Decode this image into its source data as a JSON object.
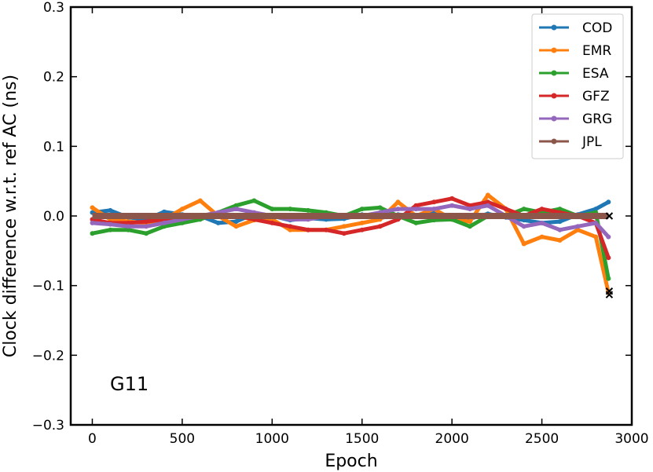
{
  "chart_data": {
    "type": "line",
    "title": "",
    "xlabel": "Epoch",
    "ylabel": "Clock difference w.r.t. ref AC (ns)",
    "xlim": [
      -120,
      3000
    ],
    "ylim": [
      -0.3,
      0.3
    ],
    "xticks": [
      0,
      500,
      1000,
      1500,
      2000,
      2500,
      3000
    ],
    "yticks": [
      -0.3,
      -0.2,
      -0.1,
      0.0,
      0.1,
      0.2,
      0.3
    ],
    "xtick_labels": [
      "0",
      "500",
      "1000",
      "1500",
      "2000",
      "2500",
      "3000"
    ],
    "ytick_labels": [
      "−0.3",
      "−0.2",
      "−0.1",
      "0.0",
      "0.1",
      "0.2",
      "0.3"
    ],
    "grid": false,
    "legend_position": "top-right",
    "annotation": "G11",
    "x": [
      0,
      100,
      200,
      300,
      400,
      500,
      600,
      700,
      800,
      900,
      1000,
      1100,
      1200,
      1300,
      1400,
      1500,
      1600,
      1700,
      1800,
      1900,
      2000,
      2100,
      2200,
      2300,
      2400,
      2500,
      2600,
      2700,
      2800,
      2870
    ],
    "series": [
      {
        "name": "COD",
        "color": "#1f77b4",
        "values": [
          0.005,
          0.008,
          -0.002,
          -0.005,
          0.006,
          0.002,
          0.0,
          -0.01,
          -0.008,
          0.003,
          0.0,
          -0.006,
          -0.003,
          -0.005,
          -0.004,
          0.002,
          -0.003,
          0.002,
          0.0,
          0.004,
          0.0,
          -0.004,
          0.003,
          -0.002,
          -0.006,
          -0.01,
          -0.008,
          0.002,
          0.01,
          0.02
        ]
      },
      {
        "name": "EMR",
        "color": "#ff7f0e",
        "values": [
          0.012,
          -0.005,
          -0.008,
          -0.01,
          -0.005,
          0.01,
          0.022,
          0.0,
          -0.015,
          -0.006,
          -0.005,
          -0.02,
          -0.02,
          -0.02,
          -0.015,
          -0.01,
          -0.005,
          0.02,
          0.0,
          0.01,
          -0.005,
          -0.008,
          0.03,
          0.01,
          -0.04,
          -0.03,
          -0.035,
          -0.02,
          -0.03,
          -0.11
        ]
      },
      {
        "name": "ESA",
        "color": "#2ca02c",
        "values": [
          -0.025,
          -0.02,
          -0.02,
          -0.025,
          -0.015,
          -0.01,
          -0.005,
          0.005,
          0.015,
          0.022,
          0.01,
          0.01,
          0.008,
          0.005,
          0.0,
          0.01,
          0.012,
          0.0,
          -0.01,
          -0.006,
          -0.005,
          -0.015,
          0.0,
          0.0,
          0.01,
          0.005,
          0.01,
          0.0,
          0.005,
          -0.09
        ]
      },
      {
        "name": "GFZ",
        "color": "#d62728",
        "values": [
          -0.005,
          -0.01,
          -0.01,
          -0.008,
          -0.005,
          0.0,
          0.0,
          0.0,
          0.0,
          -0.005,
          -0.01,
          -0.015,
          -0.02,
          -0.02,
          -0.025,
          -0.02,
          -0.015,
          -0.005,
          0.015,
          0.02,
          0.025,
          0.015,
          0.02,
          0.01,
          0.0,
          0.01,
          0.005,
          0.0,
          -0.01,
          -0.06
        ]
      },
      {
        "name": "GRG",
        "color": "#9467bd",
        "values": [
          -0.01,
          -0.012,
          -0.015,
          -0.015,
          -0.01,
          -0.005,
          0.0,
          0.005,
          0.01,
          0.005,
          0.0,
          -0.005,
          -0.005,
          0.0,
          0.0,
          0.0,
          0.005,
          0.01,
          0.01,
          0.01,
          0.015,
          0.01,
          0.015,
          0.0,
          -0.015,
          -0.01,
          -0.02,
          -0.015,
          -0.01,
          -0.03
        ]
      },
      {
        "name": "JPL",
        "color": "#8c564b",
        "values": [
          0,
          0,
          0,
          0,
          0,
          0,
          0,
          0,
          0,
          0,
          0,
          0,
          0,
          0,
          0,
          0,
          0,
          0,
          0,
          0,
          0,
          0,
          0,
          0,
          0,
          0,
          0,
          0,
          0,
          0
        ]
      }
    ],
    "markers_x": {
      "x": 2875,
      "values": [
        0.0,
        -0.108,
        -0.113
      ],
      "color": "#000000"
    }
  }
}
